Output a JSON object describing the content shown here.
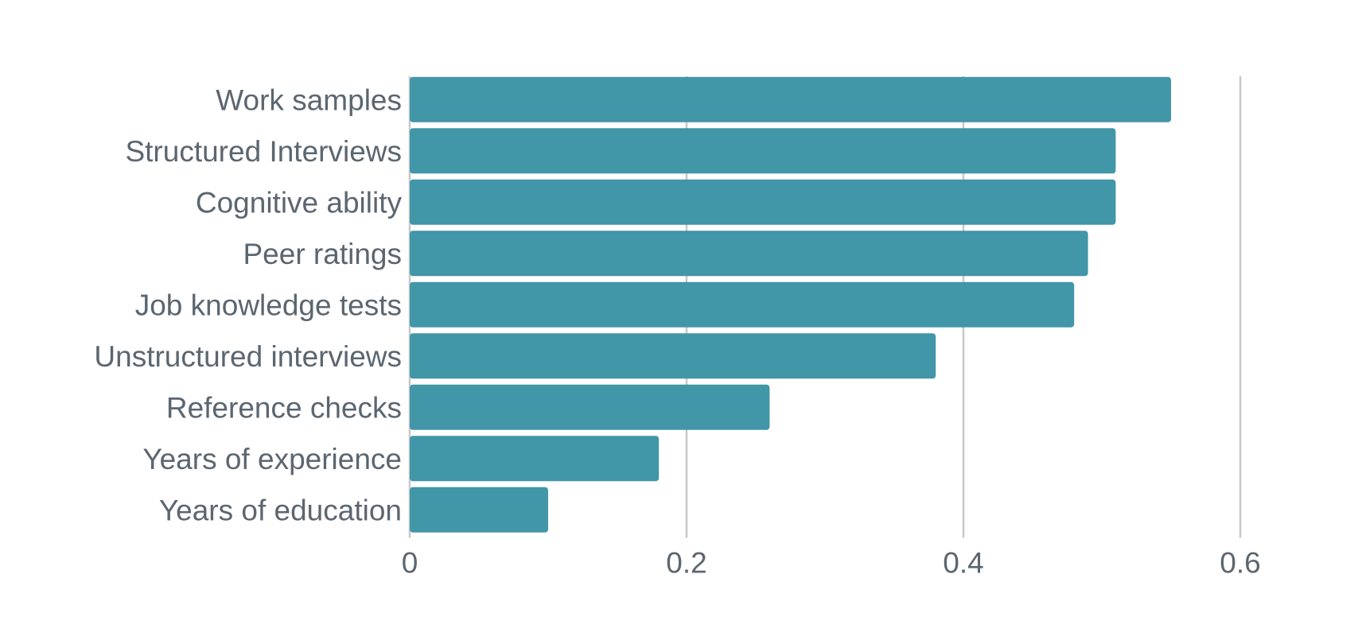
{
  "chart_data": {
    "type": "bar",
    "orientation": "horizontal",
    "title": "",
    "xlabel": "",
    "ylabel": "",
    "categories": [
      "Work samples",
      "Structured Interviews",
      "Cognitive ability",
      "Peer ratings",
      "Job knowledge tests",
      "Unstructured interviews",
      "Reference checks",
      "Years of experience",
      "Years of education"
    ],
    "values": [
      0.55,
      0.51,
      0.51,
      0.49,
      0.48,
      0.38,
      0.26,
      0.18,
      0.1
    ],
    "xlim": [
      0,
      0.6
    ],
    "xticks": [
      0,
      0.2,
      0.4,
      0.6
    ],
    "xtick_labels": [
      "0",
      "0.2",
      "0.4",
      "0.6"
    ],
    "grid": "vertical",
    "legend": "none",
    "colors": {
      "bar": "#4196a7",
      "grid": "#c8c8c8",
      "text": "#5b6670"
    }
  }
}
